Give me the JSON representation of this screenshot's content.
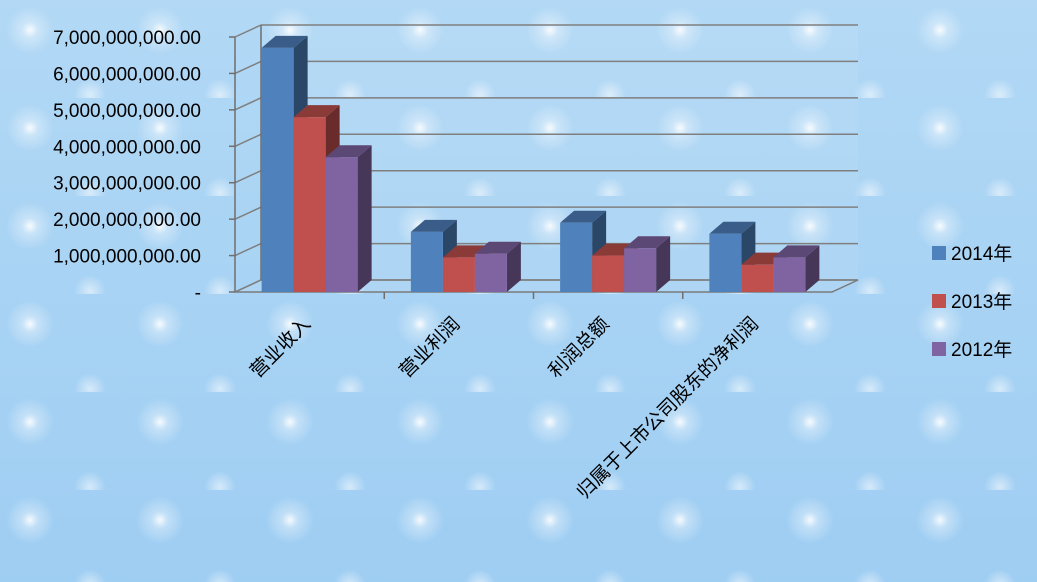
{
  "chart_data": {
    "type": "bar",
    "title": "",
    "xlabel": "",
    "ylabel": "",
    "categories": [
      "营业收入",
      "营业利润",
      "利润总额",
      "归属于上市公司股东的净利润"
    ],
    "series": [
      {
        "name": "2014年",
        "color": "#4f81bd",
        "values": [
          6700000000,
          1650000000,
          1900000000,
          1600000000
        ]
      },
      {
        "name": "2013年",
        "color": "#c0504d",
        "values": [
          4800000000,
          950000000,
          1000000000,
          750000000
        ]
      },
      {
        "name": "2012年",
        "color": "#8064a2",
        "values": [
          3700000000,
          1050000000,
          1200000000,
          950000000
        ]
      }
    ],
    "y_ticks": [
      {
        "value": 0,
        "label": "-"
      },
      {
        "value": 1000000000,
        "label": "1,000,000,000.00"
      },
      {
        "value": 2000000000,
        "label": "2,000,000,000.00"
      },
      {
        "value": 3000000000,
        "label": "3,000,000,000.00"
      },
      {
        "value": 4000000000,
        "label": "4,000,000,000.00"
      },
      {
        "value": 5000000000,
        "label": "5,000,000,000.00"
      },
      {
        "value": 6000000000,
        "label": "6,000,000,000.00"
      },
      {
        "value": 7000000000,
        "label": "7,000,000,000.00"
      }
    ],
    "ylim": [
      0,
      7000000000
    ],
    "grid": true,
    "legend_position": "right",
    "style": "3d-clustered-column"
  }
}
